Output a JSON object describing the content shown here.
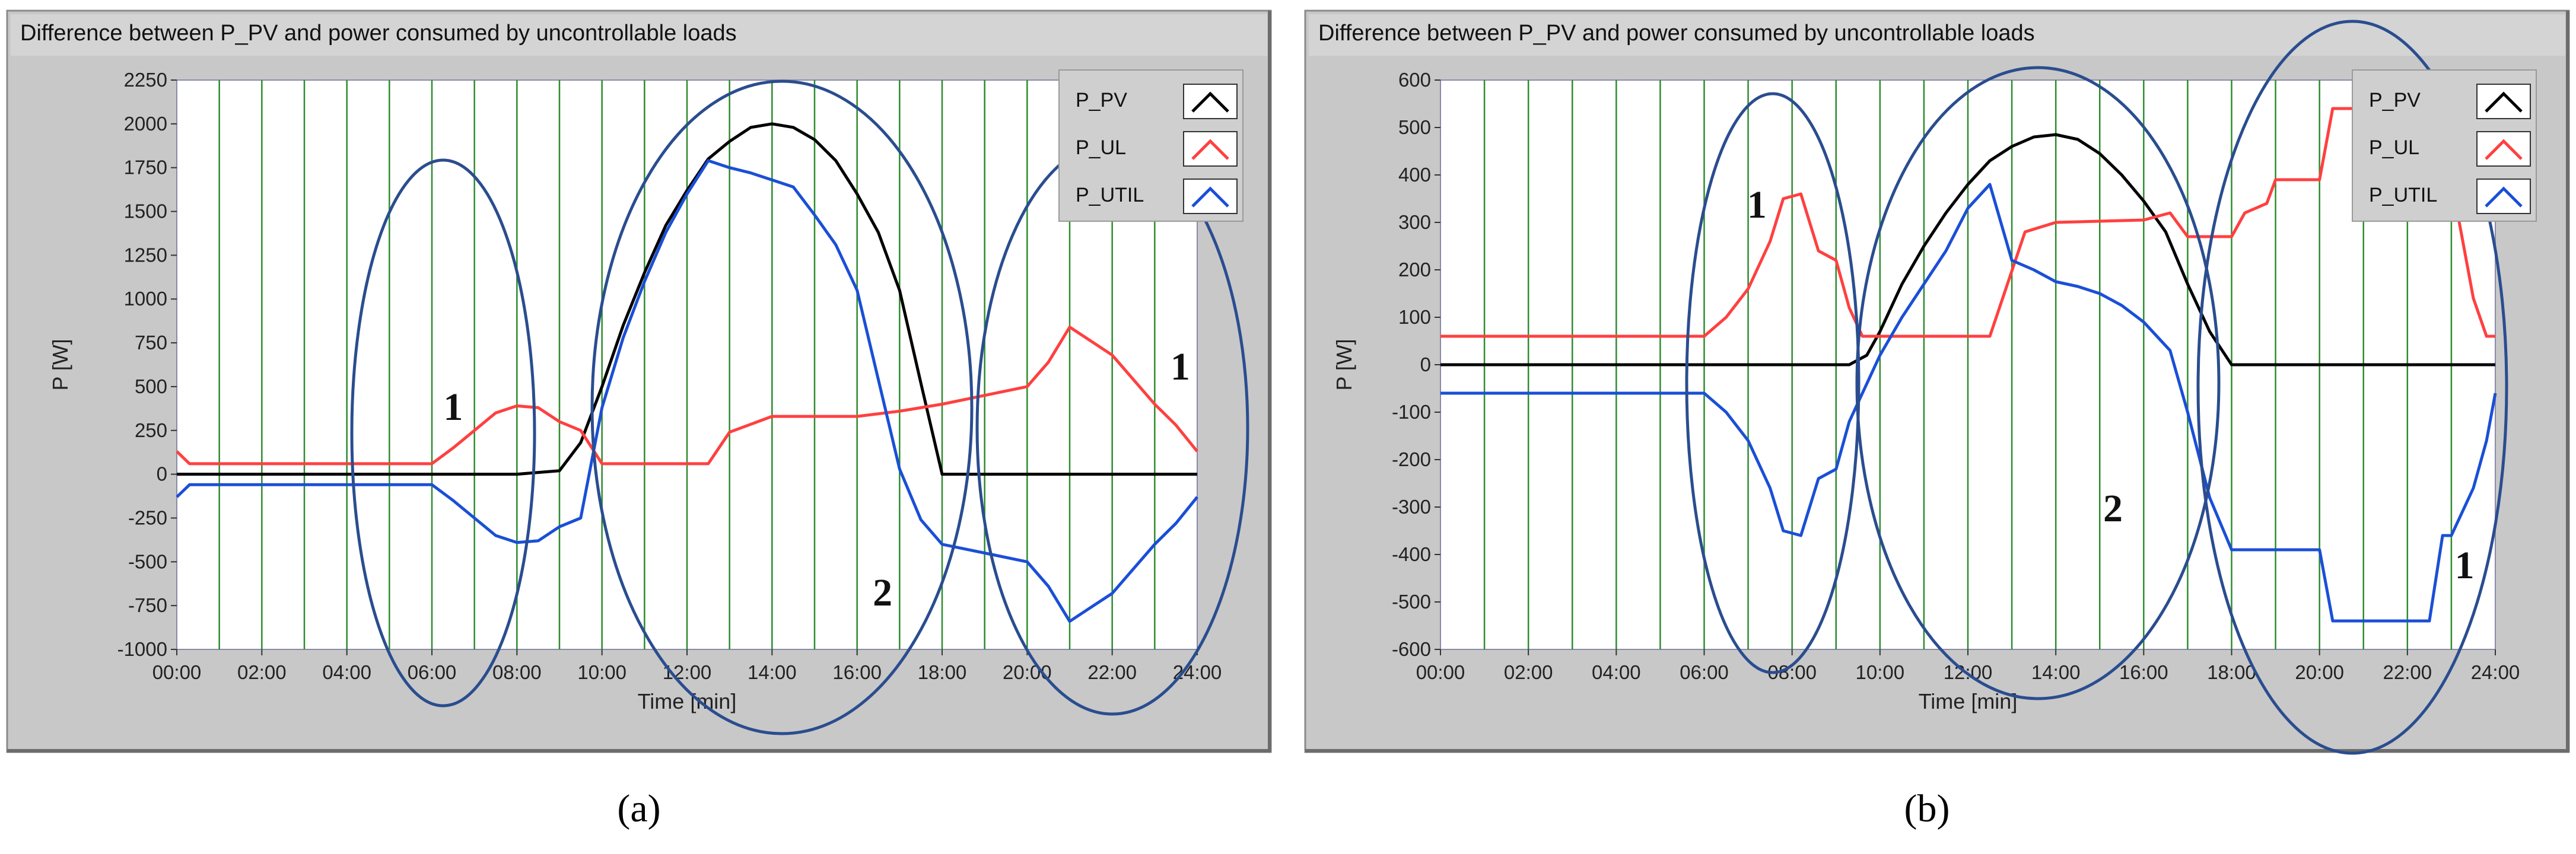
{
  "colors": {
    "frame": "#c8c8c8",
    "plot_bg": "#ffffff",
    "grid": "#2e8b2e",
    "P_PV": "#000000",
    "P_UL": "#ff4040",
    "P_UTIL": "#1a4fd6",
    "ellipse": "#2a4d8f"
  },
  "chart_data": [
    {
      "type": "line",
      "caption": "(a)",
      "title": "Difference between P_PV and power consumed by uncontrollable loads",
      "xlabel": "Time [min]",
      "ylabel": "P [W]",
      "xlim": [
        0,
        24
      ],
      "ylim": [
        -1000,
        2250
      ],
      "x_ticks": [
        "00:00",
        "02:00",
        "04:00",
        "06:00",
        "08:00",
        "10:00",
        "12:00",
        "14:00",
        "16:00",
        "18:00",
        "20:00",
        "22:00",
        "24:00"
      ],
      "y_ticks": [
        2250,
        2000,
        1750,
        1500,
        1250,
        1000,
        750,
        500,
        250,
        0,
        -250,
        -500,
        -750,
        -1000
      ],
      "y_tick_labels": [
        "2250",
        "2000",
        "1750",
        "1500",
        "1250",
        "1000",
        "750",
        "500",
        "250",
        "0",
        "-250",
        "-500",
        "-750",
        "-1000"
      ],
      "grid": "vertical every hour",
      "legend_position": "top-right",
      "series": [
        {
          "name": "P_PV",
          "x": [
            0,
            6,
            8,
            9,
            9.5,
            10,
            10.5,
            11,
            11.5,
            12,
            12.5,
            13,
            13.5,
            14,
            14.5,
            15,
            15.5,
            16,
            16.5,
            17,
            17.5,
            18,
            24
          ],
          "y": [
            0,
            0,
            0,
            20,
            180,
            500,
            850,
            1150,
            1420,
            1620,
            1800,
            1900,
            1980,
            2000,
            1980,
            1910,
            1790,
            1600,
            1380,
            1050,
            520,
            0,
            0
          ]
        },
        {
          "name": "P_UL",
          "x": [
            0,
            0.3,
            6,
            6.5,
            7,
            7.5,
            8,
            8.5,
            9,
            9.5,
            10,
            12.5,
            13,
            14,
            15,
            16,
            17,
            18,
            19,
            20,
            20.5,
            21,
            21.5,
            22,
            22.5,
            23,
            23.5,
            24
          ],
          "y": [
            130,
            60,
            60,
            150,
            250,
            350,
            390,
            380,
            300,
            250,
            60,
            60,
            240,
            330,
            330,
            330,
            360,
            400,
            450,
            500,
            640,
            840,
            760,
            680,
            540,
            400,
            280,
            130
          ]
        },
        {
          "name": "P_UTIL",
          "x": [
            0,
            0.3,
            6,
            6.5,
            7,
            7.5,
            8,
            8.5,
            9,
            9.5,
            10,
            10.5,
            11,
            11.5,
            12,
            12.5,
            13,
            13.5,
            14,
            14.5,
            15,
            15.5,
            16,
            16.5,
            17,
            17.5,
            18,
            19,
            20,
            20.5,
            21,
            21.5,
            22,
            22.5,
            23,
            23.5,
            24
          ],
          "y": [
            -130,
            -60,
            -60,
            -150,
            -250,
            -350,
            -390,
            -380,
            -300,
            -250,
            380,
            780,
            1100,
            1380,
            1600,
            1790,
            1750,
            1720,
            1680,
            1640,
            1480,
            1310,
            1050,
            540,
            30,
            -260,
            -400,
            -450,
            -500,
            -640,
            -840,
            -760,
            -680,
            -540,
            -400,
            -280,
            -130
          ]
        }
      ],
      "annotations": [
        {
          "text": "1",
          "x": 6.5,
          "y": 310
        },
        {
          "text": "2",
          "x": 16.6,
          "y": -750
        },
        {
          "text": "1",
          "x": 23.6,
          "y": 540
        }
      ]
    },
    {
      "type": "line",
      "caption": "(b)",
      "title": "Difference between P_PV and power consumed by uncontrollable loads",
      "xlabel": "Time [min]",
      "ylabel": "P [W]",
      "xlim": [
        0,
        24
      ],
      "ylim": [
        -600,
        600
      ],
      "x_ticks": [
        "00:00",
        "02:00",
        "04:00",
        "06:00",
        "08:00",
        "10:00",
        "12:00",
        "14:00",
        "16:00",
        "18:00",
        "20:00",
        "22:00",
        "24:00"
      ],
      "y_ticks": [
        600,
        500,
        400,
        300,
        200,
        100,
        0,
        -100,
        -200,
        -300,
        -400,
        -500,
        -600
      ],
      "y_tick_labels": [
        "600",
        "500",
        "400",
        "300",
        "200",
        "100",
        "0",
        "-100",
        "-200",
        "-300",
        "-400",
        "-500",
        "-600"
      ],
      "grid": "vertical every hour",
      "legend_position": "top-right",
      "series": [
        {
          "name": "P_PV",
          "x": [
            0,
            9.3,
            9.7,
            10,
            10.5,
            11,
            11.5,
            12,
            12.5,
            13,
            13.5,
            14,
            14.5,
            15,
            15.5,
            16,
            16.5,
            17,
            17.5,
            18,
            24
          ],
          "y": [
            0,
            0,
            20,
            70,
            170,
            250,
            320,
            380,
            430,
            460,
            480,
            485,
            475,
            445,
            400,
            345,
            280,
            170,
            70,
            0,
            0
          ]
        },
        {
          "name": "P_UL",
          "x": [
            0,
            6,
            6.5,
            7,
            7.5,
            7.8,
            8.2,
            8.6,
            9,
            9.3,
            9.6,
            10,
            12.5,
            13.3,
            14,
            16,
            16.6,
            17,
            18,
            18.3,
            18.8,
            19,
            20,
            20.3,
            21,
            22.5,
            22.8,
            23,
            23.5,
            23.8,
            24
          ],
          "y": [
            60,
            60,
            100,
            160,
            260,
            350,
            360,
            240,
            220,
            120,
            60,
            60,
            60,
            280,
            300,
            305,
            320,
            270,
            270,
            320,
            340,
            390,
            390,
            540,
            540,
            540,
            540,
            390,
            140,
            60,
            60
          ]
        },
        {
          "name": "P_UTIL",
          "x": [
            0,
            6,
            6.5,
            7,
            7.5,
            7.8,
            8.2,
            8.6,
            9,
            9.3,
            9.6,
            10,
            10.5,
            11,
            11.5,
            12,
            12.5,
            13,
            13.5,
            14,
            14.5,
            15,
            15.5,
            16,
            16.6,
            17,
            17.5,
            18,
            19,
            20,
            20.3,
            21,
            22.5,
            22.8,
            23,
            23.5,
            23.8,
            24
          ],
          "y": [
            -60,
            -60,
            -100,
            -160,
            -260,
            -350,
            -360,
            -240,
            -220,
            -120,
            -60,
            20,
            100,
            170,
            240,
            330,
            380,
            220,
            200,
            175,
            165,
            150,
            125,
            90,
            30,
            -100,
            -280,
            -390,
            -390,
            -390,
            -540,
            -540,
            -540,
            -360,
            -360,
            -260,
            -160,
            -60
          ]
        }
      ],
      "annotations": [
        {
          "text": "1",
          "x": 7.2,
          "y": 310
        },
        {
          "text": "2",
          "x": 15.3,
          "y": -330
        },
        {
          "text": "1",
          "x": 23.3,
          "y": -450
        }
      ]
    }
  ]
}
